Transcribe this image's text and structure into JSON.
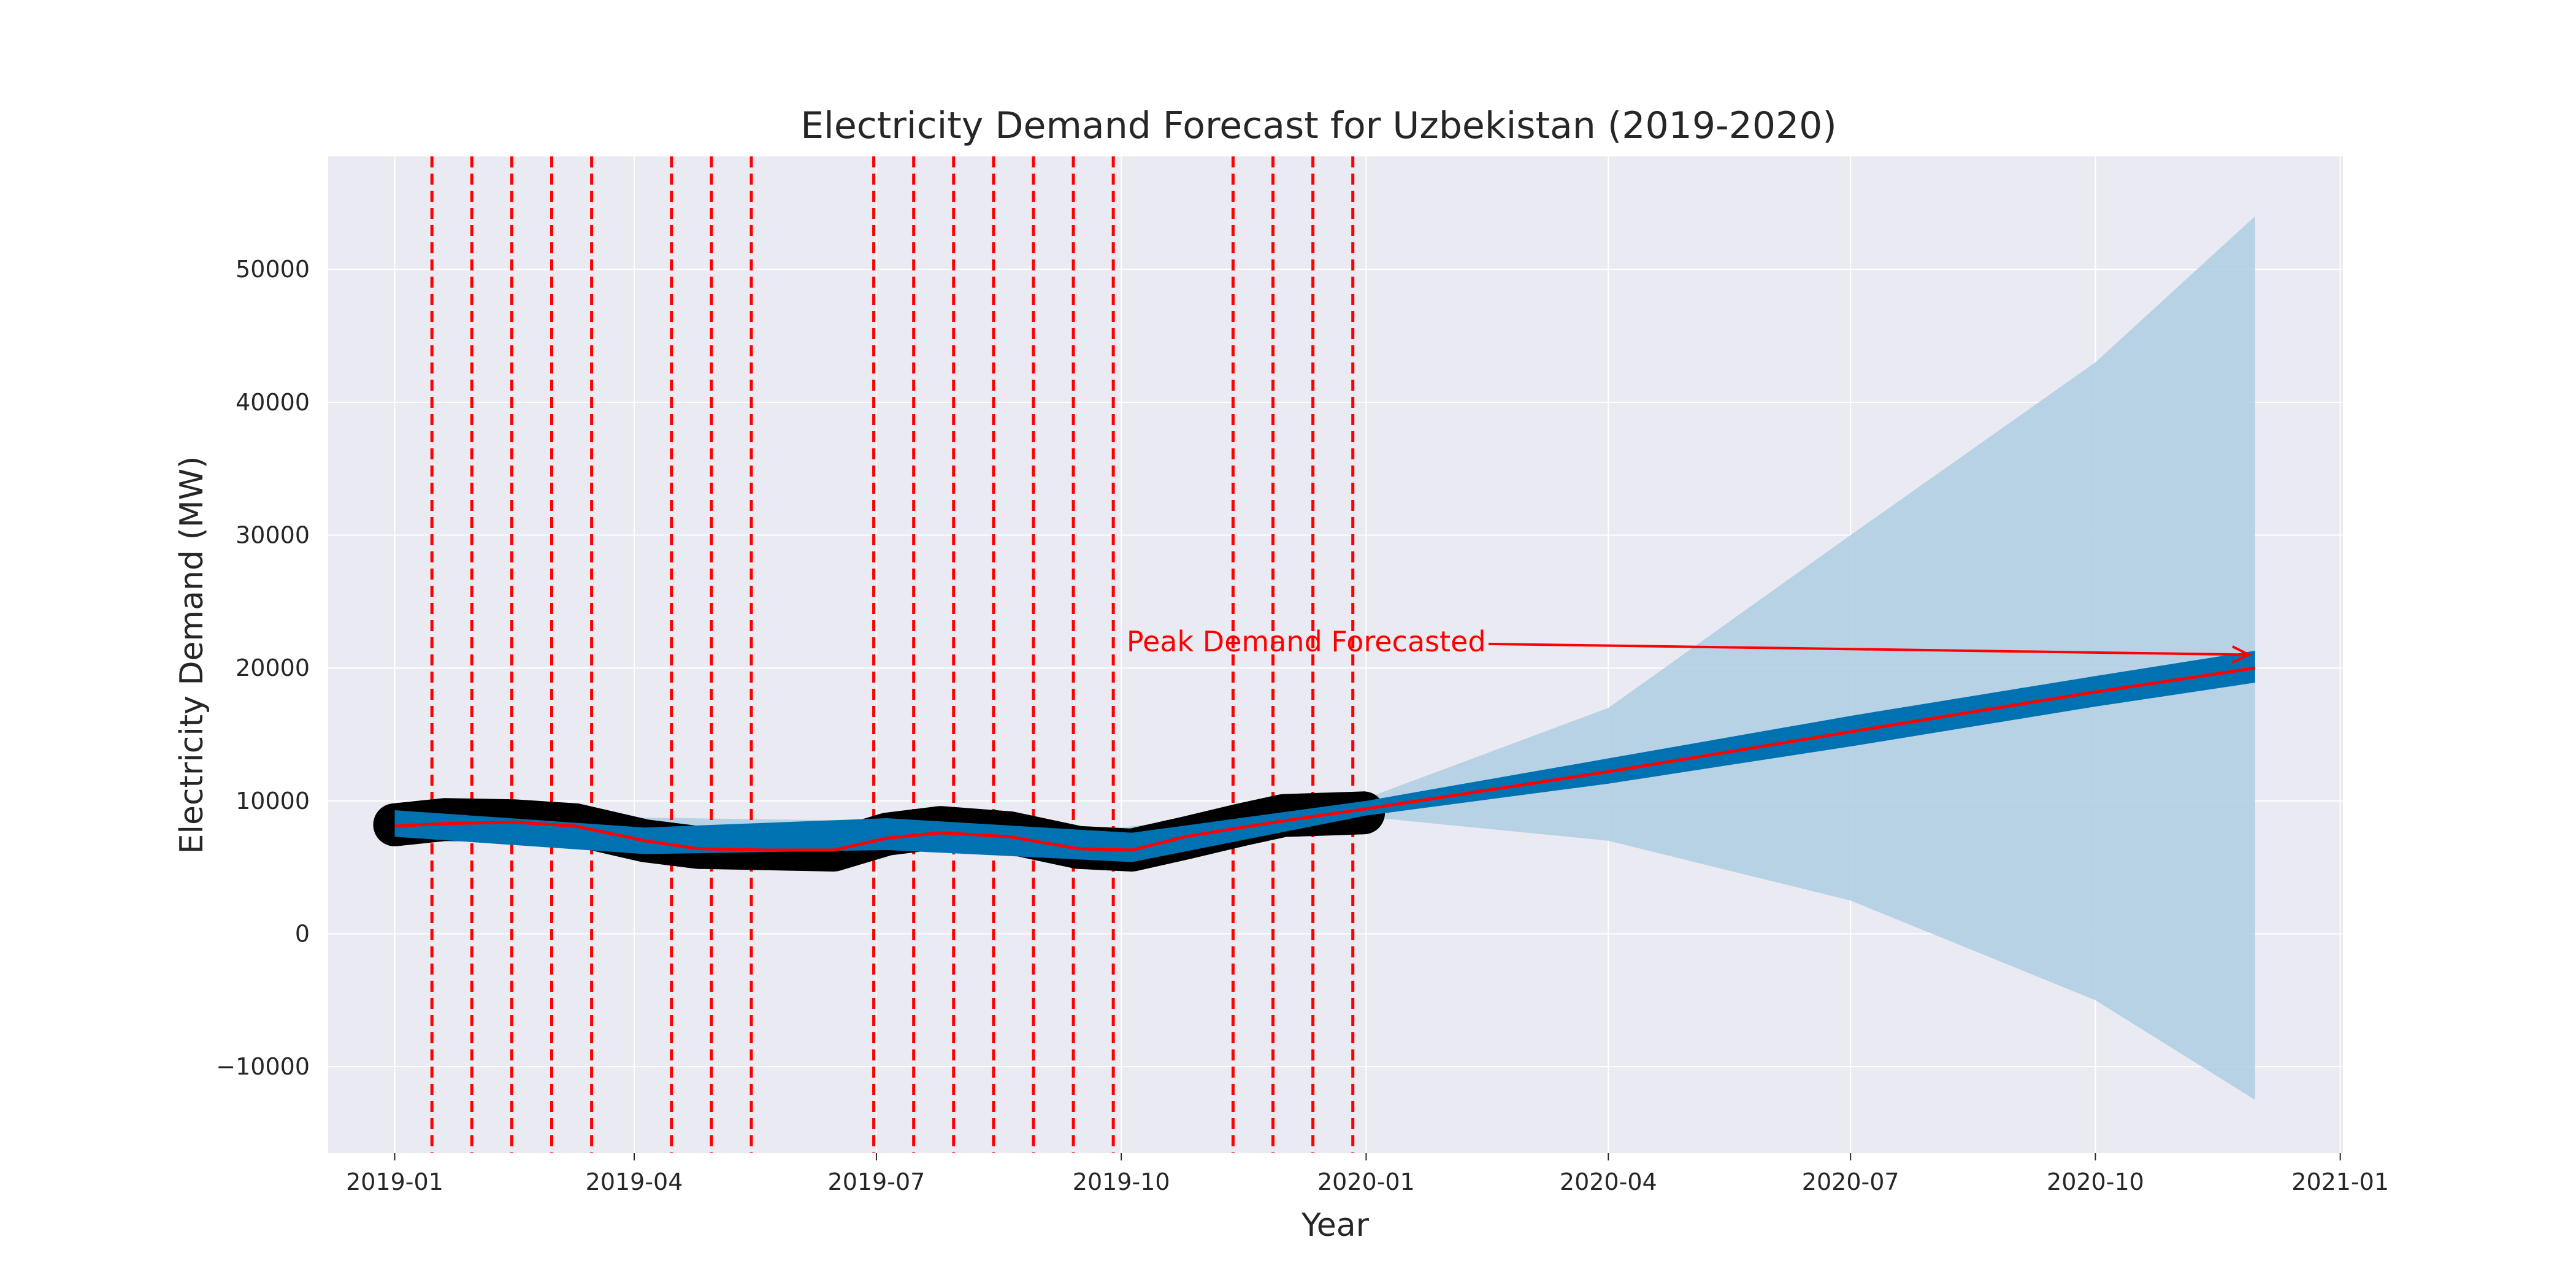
{
  "chart_data": {
    "type": "line",
    "title": "Electricity Demand Forecast for Uzbekistan (2019-2020)",
    "xlabel": "Year",
    "ylabel": "Electricity Demand (MW)",
    "xlim": [
      "2018-12-07",
      "2021-01-02"
    ],
    "ylim": [
      -16500,
      58500
    ],
    "grid": true,
    "background": "#eaeaf2",
    "x_ticks": [
      "2019-01-01",
      "2019-04-01",
      "2019-07-01",
      "2019-10-01",
      "2020-01-01",
      "2020-04-01",
      "2020-07-01",
      "2020-10-01",
      "2021-01-01"
    ],
    "x_tick_labels": [
      "2019-01",
      "2019-04",
      "2019-07",
      "2019-10",
      "2020-01",
      "2020-04",
      "2020-07",
      "2020-10",
      "2021-01"
    ],
    "y_ticks": [
      -10000,
      0,
      10000,
      20000,
      30000,
      40000,
      50000
    ],
    "y_tick_labels": [
      "−10000",
      "0",
      "10000",
      "20000",
      "30000",
      "40000",
      "50000"
    ],
    "series": [
      {
        "kind": "observed",
        "color": "#000000",
        "x": [
          "2019-01-01",
          "2019-01-20",
          "2019-02-15",
          "2019-03-10",
          "2019-04-05",
          "2019-04-25",
          "2019-05-20",
          "2019-06-15",
          "2019-07-05",
          "2019-07-25",
          "2019-08-20",
          "2019-09-15",
          "2019-10-05",
          "2019-10-25",
          "2019-11-15",
          "2019-12-01",
          "2019-12-31"
        ],
        "y": [
          8200,
          8600,
          8500,
          8200,
          7000,
          6500,
          6400,
          6300,
          7500,
          8000,
          7600,
          6500,
          6300,
          7200,
          8200,
          8900,
          9100
        ]
      },
      {
        "kind": "forecast",
        "color": "#ff0000",
        "x": [
          "2019-01-01",
          "2019-01-20",
          "2019-02-15",
          "2019-03-10",
          "2019-04-05",
          "2019-04-25",
          "2019-05-20",
          "2019-06-15",
          "2019-07-05",
          "2019-07-25",
          "2019-08-20",
          "2019-09-15",
          "2019-10-05",
          "2019-10-25",
          "2019-11-15",
          "2019-12-01",
          "2020-01-01",
          "2020-04-01",
          "2020-07-01",
          "2020-10-01",
          "2020-11-30"
        ],
        "y": [
          8100,
          8300,
          8400,
          8100,
          7000,
          6400,
          6300,
          6300,
          7200,
          7600,
          7300,
          6400,
          6300,
          7300,
          8000,
          8500,
          9400,
          12200,
          15200,
          18200,
          20000
        ]
      }
    ],
    "uncertainty_band_inner": {
      "color": "#0072b2",
      "x": [
        "2019-01-01",
        "2019-04-05",
        "2019-07-05",
        "2019-10-05",
        "2020-01-01",
        "2020-04-01",
        "2020-07-01",
        "2020-10-01",
        "2020-11-30"
      ],
      "upper": [
        9300,
        8000,
        8700,
        7600,
        10000,
        13200,
        16400,
        19400,
        21300
      ],
      "lower": [
        7300,
        6000,
        6300,
        5400,
        8900,
        11300,
        14100,
        17100,
        18900
      ]
    },
    "uncertainty_band_outer": {
      "color": "#aecde3",
      "x": [
        "2019-01-01",
        "2019-07-01",
        "2019-10-01",
        "2020-01-01",
        "2020-04-01",
        "2020-07-01",
        "2020-10-01",
        "2020-11-30"
      ],
      "upper": [
        9000,
        8500,
        8000,
        10200,
        17000,
        30000,
        43000,
        54000
      ],
      "lower": [
        7600,
        6500,
        6000,
        8800,
        7000,
        2500,
        -5000,
        -12500
      ]
    },
    "changepoints": [
      "2019-01-15",
      "2019-01-30",
      "2019-02-14",
      "2019-03-01",
      "2019-03-16",
      "2019-04-15",
      "2019-04-30",
      "2019-05-15",
      "2019-06-30",
      "2019-07-15",
      "2019-07-30",
      "2019-08-14",
      "2019-08-29",
      "2019-09-13",
      "2019-09-28",
      "2019-11-12",
      "2019-11-27",
      "2019-12-12",
      "2019-12-27"
    ],
    "changepoint_color": "#ff0000",
    "annotations": [
      {
        "text": "Peak Demand Forecasted",
        "xy": [
          "2020-11-30",
          21000
        ],
        "xytext": [
          "2019-10-03",
          22000
        ],
        "color": "#ff0000"
      }
    ]
  }
}
